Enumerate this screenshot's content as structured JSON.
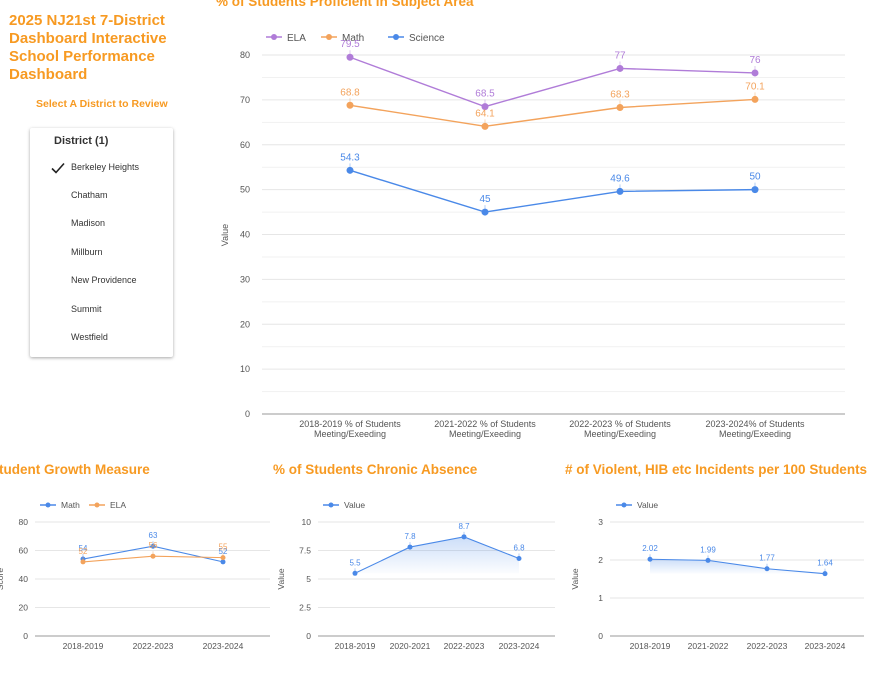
{
  "dashboard": {
    "title_lines": [
      "2025 NJ21st 7-District",
      "Dashboard Interactive",
      "School Performance",
      "Dashboard"
    ],
    "select_label": "Select A District to Review"
  },
  "district_filter": {
    "header": "District (1)",
    "selected": "Berkeley Heights",
    "items": [
      "Berkeley Heights",
      "Chatham",
      "Madison",
      "Millburn",
      "New Providence",
      "Summit",
      "Westfield"
    ]
  },
  "chart_data": [
    {
      "id": "proficiency",
      "type": "line",
      "title": "% of Students Proficient in Subject Area",
      "xlabel": "",
      "ylabel": "Value",
      "ylim": [
        0,
        80
      ],
      "yticks": [
        0,
        10,
        20,
        30,
        40,
        50,
        60,
        70,
        80
      ],
      "categories": [
        [
          "2018-2019 % of Students",
          "Meeting/Exeeding"
        ],
        [
          "2021-2022 % of Students",
          "Meeting/Exeeding"
        ],
        [
          "2022-2023 % of Students",
          "Meeting/Exeeding"
        ],
        [
          "2023-2024% of Students",
          "Meeting/Exeeding"
        ]
      ],
      "series": [
        {
          "name": "ELA",
          "color": "#b07cd8",
          "values": [
            79.5,
            68.5,
            77,
            76
          ]
        },
        {
          "name": "Math",
          "color": "#f3a35c",
          "values": [
            68.8,
            64.1,
            68.3,
            70.1
          ]
        },
        {
          "name": "Science",
          "color": "#4a89e8",
          "values": [
            54.3,
            45,
            49.6,
            50
          ]
        }
      ],
      "labels": [
        [
          "79.5",
          "68.5",
          "77",
          "76"
        ],
        [
          "68.8",
          "64.1",
          "68.3",
          "70.1"
        ],
        [
          "54.3",
          "45",
          "49.6",
          "50"
        ]
      ],
      "legend": "top-left",
      "grid": true
    },
    {
      "id": "growth",
      "type": "line",
      "title": "Student Growth Measure",
      "title_visible": "tudent Growth Measure",
      "xlabel": "",
      "ylabel": "Score",
      "ylim": [
        0,
        80
      ],
      "yticks": [
        0,
        20,
        40,
        60,
        80
      ],
      "categories": [
        "2018-2019",
        "2022-2023",
        "2023-2024"
      ],
      "series": [
        {
          "name": "Math",
          "color": "#4a89e8",
          "values": [
            54,
            63,
            52
          ]
        },
        {
          "name": "ELA",
          "color": "#f3a35c",
          "values": [
            52,
            56,
            55
          ]
        }
      ],
      "labels": [
        [
          "54",
          "63",
          "52"
        ],
        [
          "52",
          "56",
          "55"
        ]
      ],
      "legend": "top-left",
      "grid": true
    },
    {
      "id": "absence",
      "type": "area",
      "title": "% of Students Chronic Absence",
      "xlabel": "",
      "ylabel": "Value",
      "ylim": [
        0,
        10
      ],
      "yticks": [
        0,
        2.5,
        5,
        7.5,
        10
      ],
      "categories": [
        "2018-2019",
        "2020-2021",
        "2022-2023",
        "2023-2024"
      ],
      "series": [
        {
          "name": "Value",
          "color": "#4a89e8",
          "values": [
            5.5,
            7.8,
            8.7,
            6.8
          ]
        }
      ],
      "labels": [
        [
          "5.5",
          "7.8",
          "8.7",
          "6.8"
        ]
      ],
      "legend": "top-left",
      "grid": true
    },
    {
      "id": "incidents",
      "type": "area",
      "title": "# of Violent, HIB etc Incidents per 100 Students",
      "xlabel": "",
      "ylabel": "Value",
      "ylim": [
        0,
        3
      ],
      "yticks": [
        0,
        1,
        2,
        3
      ],
      "categories": [
        "2018-2019",
        "2021-2022",
        "2022-2023",
        "2023-2024"
      ],
      "series": [
        {
          "name": "Value",
          "color": "#4a89e8",
          "values": [
            2.02,
            1.99,
            1.77,
            1.64
          ]
        }
      ],
      "labels": [
        [
          "2.02",
          "1.99",
          "1.77",
          "1.64"
        ]
      ],
      "legend": "top-left",
      "grid": true
    }
  ]
}
